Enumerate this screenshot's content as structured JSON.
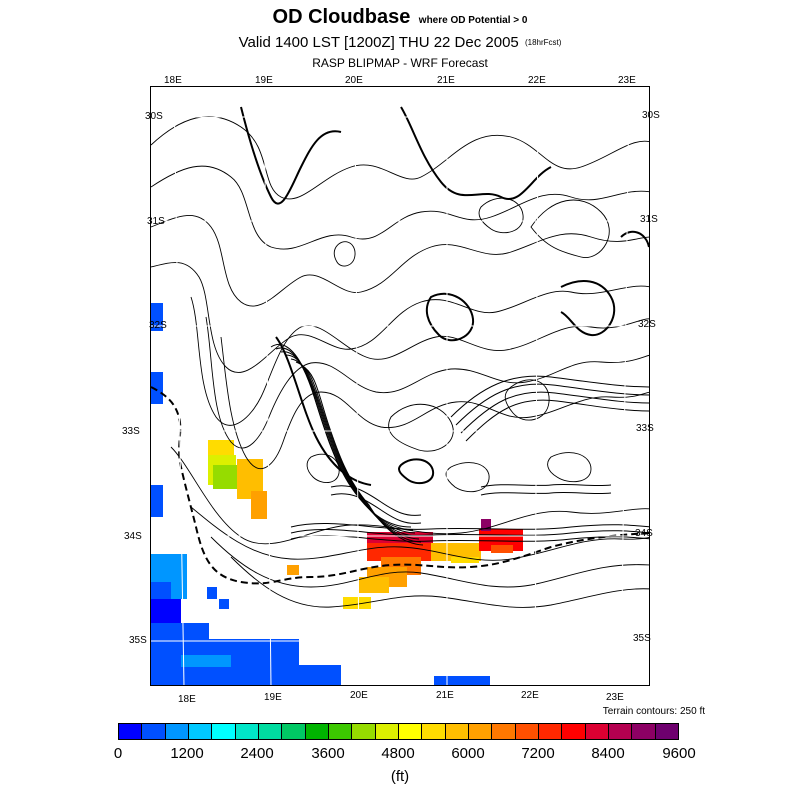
{
  "header": {
    "title": "OD Cloudbase",
    "title_note": "where OD Potential > 0",
    "valid": "Valid 1400 LST [1200Z] THU 22 Dec 2005",
    "valid_note": "(18hrFcst)",
    "subtitle": "RASP BLIPMAP - WRF Forecast"
  },
  "map": {
    "lon_labels_top": [
      "18E",
      "19E",
      "20E",
      "21E",
      "22E",
      "23E"
    ],
    "lon_labels_bottom": [
      "18E",
      "19E",
      "20E",
      "21E",
      "22E",
      "23E"
    ],
    "lat_labels_left": [
      "30S",
      "31S",
      "32S",
      "33S",
      "34S",
      "35S"
    ],
    "lat_labels_right": [
      "30S",
      "31S",
      "32S",
      "33S",
      "34S",
      "35S"
    ],
    "terrain_note": "Terrain contours: 250 ft",
    "colors": {
      "contour": "#000000",
      "graticule": "#ffffff"
    }
  },
  "colorbar": {
    "ticks": [
      "0",
      "1200",
      "2400",
      "3600",
      "4800",
      "6000",
      "7200",
      "8400",
      "9600"
    ],
    "units": "(ft)",
    "colors": [
      "#0000ff",
      "#0050ff",
      "#0096ff",
      "#00c8ff",
      "#00ffff",
      "#00e6c8",
      "#00dca0",
      "#00c864",
      "#00b400",
      "#3cc800",
      "#96dc00",
      "#dcf000",
      "#ffff00",
      "#ffdc00",
      "#ffbe00",
      "#ffa000",
      "#ff7800",
      "#ff5000",
      "#ff2800",
      "#ff0000",
      "#dc0032",
      "#b40050",
      "#8c0064",
      "#6e006e"
    ]
  }
}
